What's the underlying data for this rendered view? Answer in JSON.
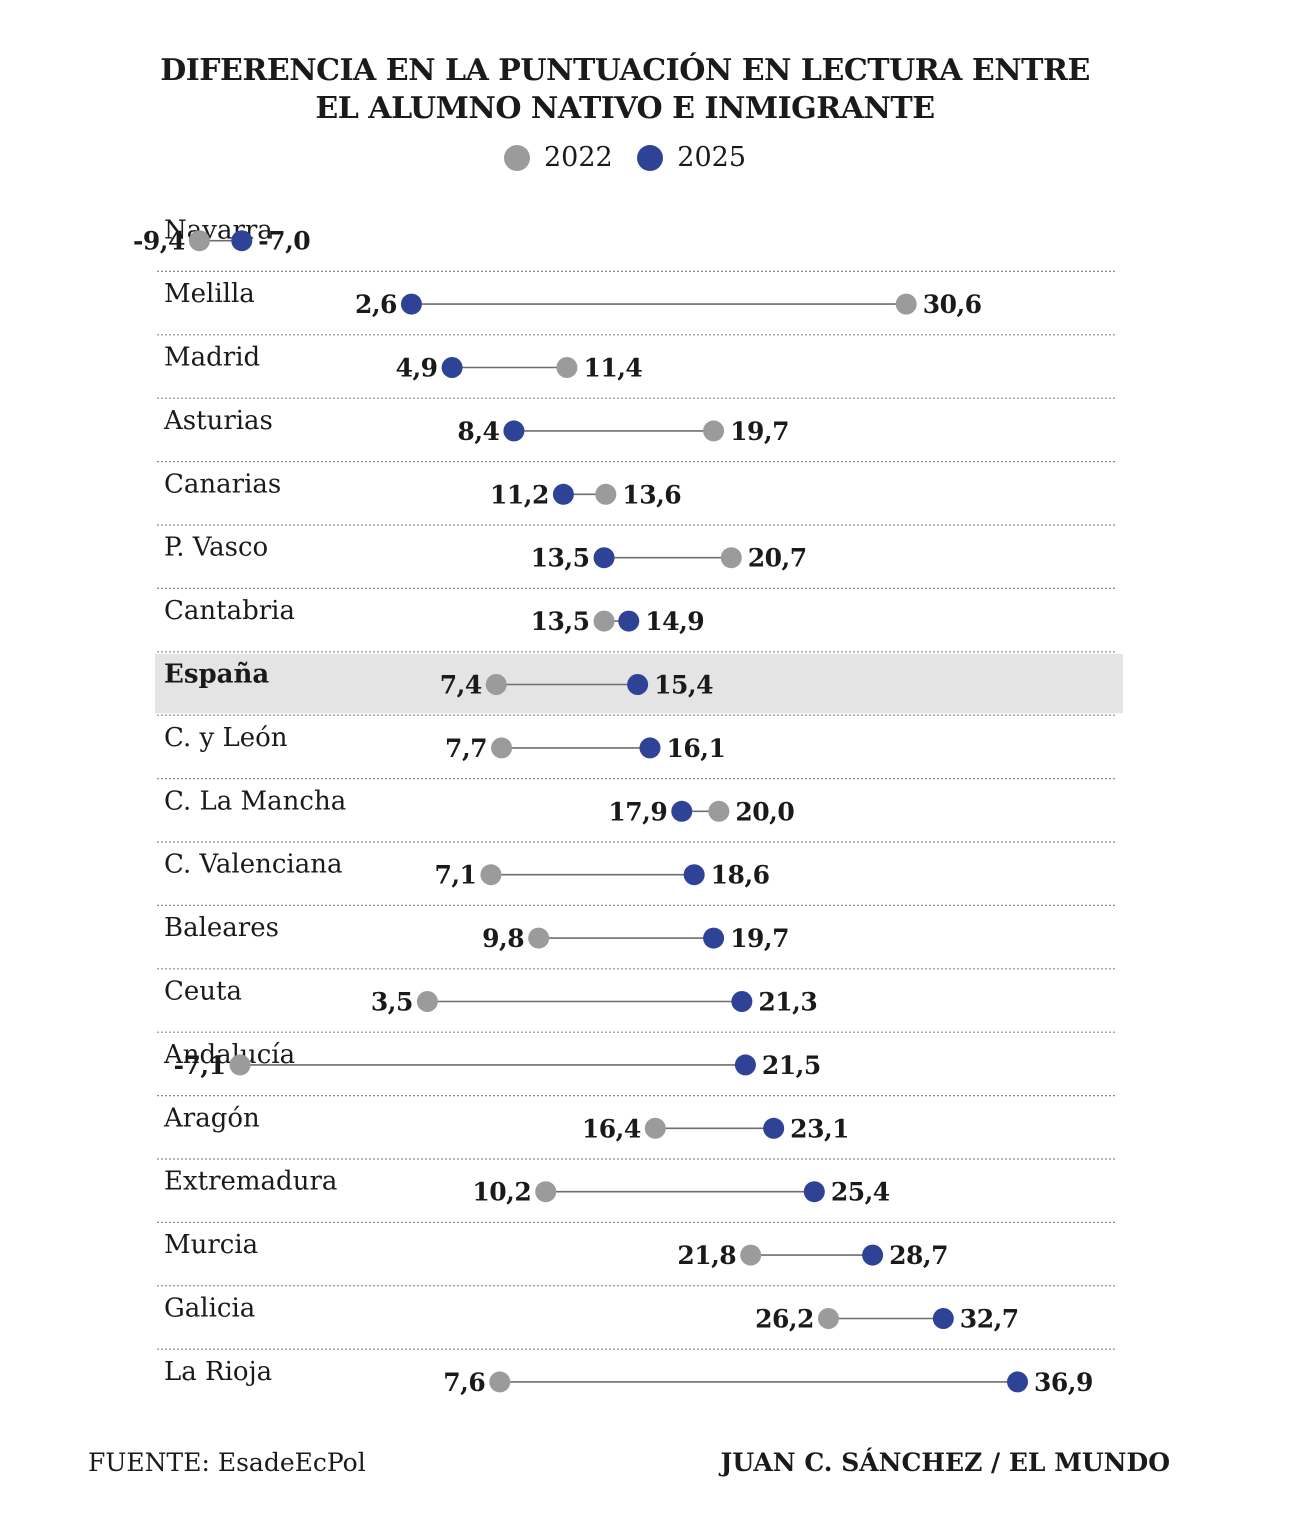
{
  "title_line1": "DIFERENCIA EN LA PUNTUACIÓN EN LECTURA ENTRE",
  "title_line2": "EL ALUMNO NATIVO E INMIGRANTE",
  "legend": {
    "a": "2022",
    "b": "2025"
  },
  "colors": {
    "y2022": "#9b9b9b",
    "y2025": "#2e4395",
    "connector": "#6e6e6e",
    "highlight": "#e4e4e4",
    "divider": "#8a8a8a"
  },
  "source": "FUENTE: EsadeEcPol",
  "credit": "JUAN C. SÁNCHEZ / EL MUNDO",
  "chart_data": {
    "type": "dot-range",
    "series": [
      {
        "name": "2022"
      },
      {
        "name": "2025"
      }
    ],
    "xlim": [
      -10,
      38
    ],
    "highlight": "España",
    "rows": [
      {
        "name": "Navarra",
        "v2022": -9.4,
        "v2025": -7.0,
        "l2022": "-9,4",
        "l2025": "-7,0"
      },
      {
        "name": "Melilla",
        "v2022": 30.6,
        "v2025": 2.6,
        "l2022": "30,6",
        "l2025": "2,6"
      },
      {
        "name": "Madrid",
        "v2022": 11.4,
        "v2025": 4.9,
        "l2022": "11,4",
        "l2025": "4,9"
      },
      {
        "name": "Asturias",
        "v2022": 19.7,
        "v2025": 8.4,
        "l2022": "19,7",
        "l2025": "8,4"
      },
      {
        "name": "Canarias",
        "v2022": 13.6,
        "v2025": 11.2,
        "l2022": "13,6",
        "l2025": "11,2"
      },
      {
        "name": "P. Vasco",
        "v2022": 20.7,
        "v2025": 13.5,
        "l2022": "20,7",
        "l2025": "13,5"
      },
      {
        "name": "Cantabria",
        "v2022": 13.5,
        "v2025": 14.9,
        "l2022": "13,5",
        "l2025": "14,9"
      },
      {
        "name": "España",
        "v2022": 7.4,
        "v2025": 15.4,
        "l2022": "7,4",
        "l2025": "15,4"
      },
      {
        "name": "C. y León",
        "v2022": 7.7,
        "v2025": 16.1,
        "l2022": "7,7",
        "l2025": "16,1"
      },
      {
        "name": "C. La Mancha",
        "v2022": 20.0,
        "v2025": 17.9,
        "l2022": "20,0",
        "l2025": "17,9"
      },
      {
        "name": "C. Valenciana",
        "v2022": 7.1,
        "v2025": 18.6,
        "l2022": "7,1",
        "l2025": "18,6"
      },
      {
        "name": "Baleares",
        "v2022": 9.8,
        "v2025": 19.7,
        "l2022": "9,8",
        "l2025": "19,7"
      },
      {
        "name": "Ceuta",
        "v2022": 3.5,
        "v2025": 21.3,
        "l2022": "3,5",
        "l2025": "21,3"
      },
      {
        "name": "Andalucía",
        "v2022": -7.1,
        "v2025": 21.5,
        "l2022": "-7,1",
        "l2025": "21,5"
      },
      {
        "name": "Aragón",
        "v2022": 16.4,
        "v2025": 23.1,
        "l2022": "16,4",
        "l2025": "23,1"
      },
      {
        "name": "Extremadura",
        "v2022": 10.2,
        "v2025": 25.4,
        "l2022": "10,2",
        "l2025": "25,4"
      },
      {
        "name": "Murcia",
        "v2022": 21.8,
        "v2025": 28.7,
        "l2022": "21,8",
        "l2025": "28,7"
      },
      {
        "name": "Galicia",
        "v2022": 26.2,
        "v2025": 32.7,
        "l2022": "26,2",
        "l2025": "32,7"
      },
      {
        "name": "La Rioja",
        "v2022": 7.6,
        "v2025": 36.9,
        "l2022": "7,6",
        "l2025": "36,9"
      }
    ]
  }
}
